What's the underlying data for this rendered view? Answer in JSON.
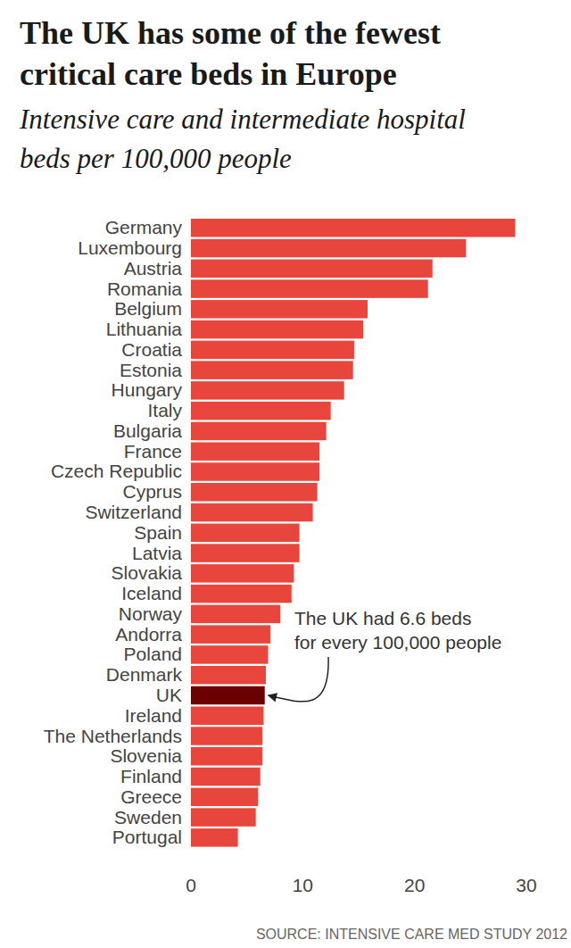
{
  "chart_data": {
    "type": "bar",
    "orientation": "horizontal",
    "title": "The UK has some of the fewest critical care beds in Europe",
    "subtitle": "Intensive care and intermediate hospital beds per 100,000 people",
    "categories": [
      "Germany",
      "Luxembourg",
      "Austria",
      "Romania",
      "Belgium",
      "Lithuania",
      "Croatia",
      "Estonia",
      "Hungary",
      "Italy",
      "Bulgaria",
      "France",
      "Czech Republic",
      "Cyprus",
      "Switzerland",
      "Spain",
      "Latvia",
      "Slovakia",
      "Iceland",
      "Norway",
      "Andorra",
      "Poland",
      "Denmark",
      "UK",
      "Ireland",
      "The Netherlands",
      "Slovenia",
      "Finland",
      "Greece",
      "Sweden",
      "Portugal"
    ],
    "values": [
      29.0,
      24.6,
      21.6,
      21.2,
      15.8,
      15.4,
      14.6,
      14.5,
      13.7,
      12.5,
      12.1,
      11.5,
      11.5,
      11.3,
      10.9,
      9.7,
      9.7,
      9.2,
      9.0,
      8.0,
      7.1,
      6.9,
      6.7,
      6.6,
      6.5,
      6.4,
      6.4,
      6.2,
      6.0,
      5.8,
      4.2
    ],
    "colors": [
      "#e8463c",
      "#e8463c",
      "#e8463c",
      "#e8463c",
      "#e8463c",
      "#e8463c",
      "#e8463c",
      "#e8463c",
      "#e8463c",
      "#e8463c",
      "#e8463c",
      "#e8463c",
      "#e8463c",
      "#e8463c",
      "#e8463c",
      "#e8463c",
      "#e8463c",
      "#e8463c",
      "#e8463c",
      "#e8463c",
      "#e8463c",
      "#e8463c",
      "#e8463c",
      "#6b0000",
      "#e8463c",
      "#e8463c",
      "#e8463c",
      "#e8463c",
      "#e8463c",
      "#e8463c",
      "#e8463c"
    ],
    "xlim": [
      0,
      30
    ],
    "xticks": [
      0,
      10,
      20,
      30
    ],
    "grid": false,
    "annotation": [
      "The UK had 6.6 beds",
      "for every 100,000 people"
    ],
    "source": "SOURCE: INTENSIVE CARE MED STUDY 2012"
  }
}
